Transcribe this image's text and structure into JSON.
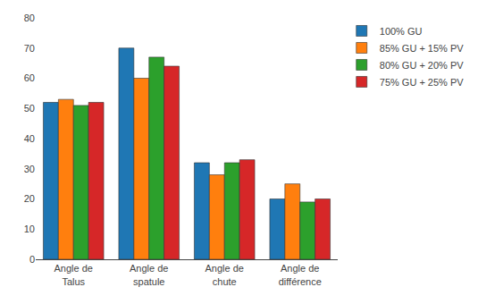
{
  "chart_data": {
    "type": "bar",
    "categories": [
      "Angle de\nTalus",
      "Angle de\nspatule",
      "Angle de\nchute",
      "Angle de\ndifférence"
    ],
    "series": [
      {
        "name": "100% GU",
        "values": [
          52,
          70,
          32,
          20
        ]
      },
      {
        "name": "85% GU + 15% PV",
        "values": [
          53,
          60,
          28,
          25
        ]
      },
      {
        "name": "80% GU + 20% PV",
        "values": [
          51,
          67,
          32,
          19
        ]
      },
      {
        "name": "75% GU + 25% PV",
        "values": [
          52,
          64,
          33,
          20
        ]
      }
    ],
    "ylim": [
      0,
      80
    ],
    "yticks": [
      0,
      10,
      20,
      30,
      40,
      50,
      60,
      70,
      80
    ],
    "grid": false,
    "legend": "right"
  }
}
